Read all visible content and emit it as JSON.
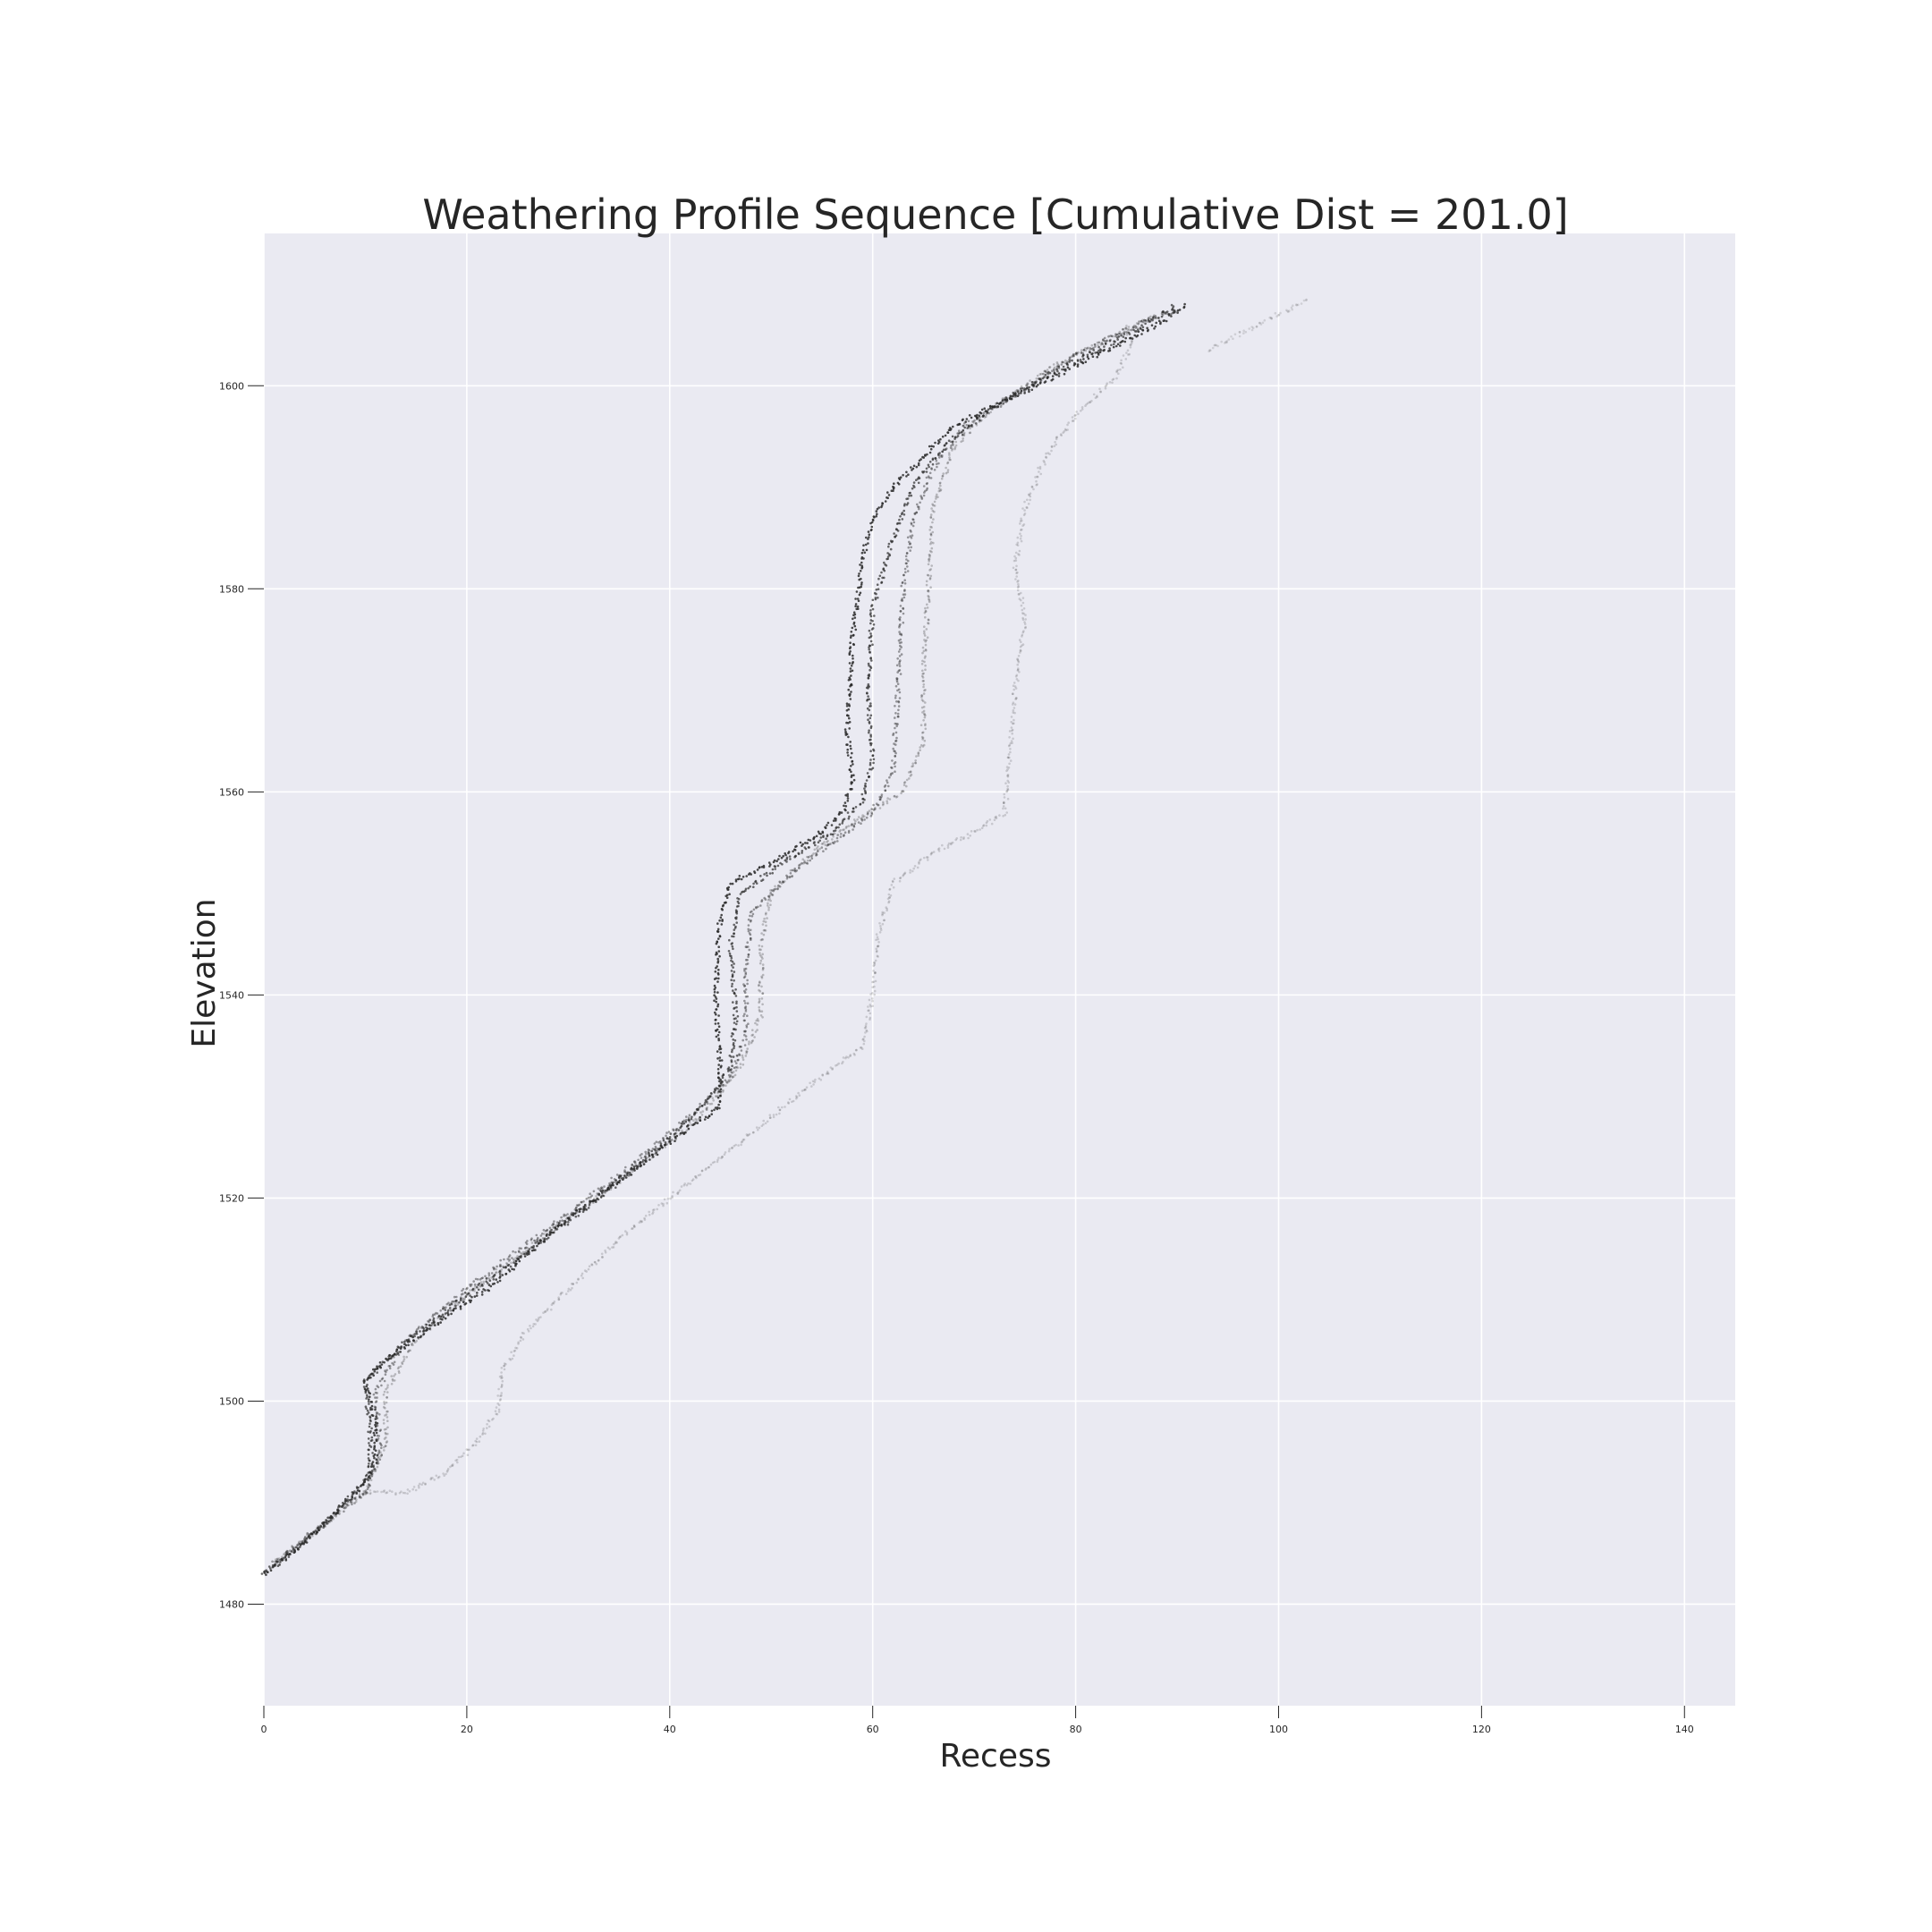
{
  "chart_data": {
    "type": "scatter",
    "title": "Weathering Profile Sequence [Cumulative Dist = 201.0]",
    "xlabel": "Recess",
    "ylabel": "Elevation",
    "xlim": [
      0,
      145
    ],
    "ylim": [
      1470,
      1615
    ],
    "xticks": [
      0,
      20,
      40,
      60,
      80,
      100,
      120,
      140
    ],
    "yticks": [
      1480,
      1500,
      1520,
      1540,
      1560,
      1580,
      1600
    ],
    "grid": true,
    "colors": {
      "background": "#eaeaf2",
      "grid": "#ffffff",
      "points": "#2b2b2b"
    },
    "series": [
      {
        "opacity": 0.85,
        "points": [
          [
            0,
            1483
          ],
          [
            4,
            1486
          ],
          [
            8,
            1490
          ],
          [
            10,
            1492
          ],
          [
            11,
            1494
          ],
          [
            11,
            1498
          ],
          [
            10,
            1502
          ],
          [
            12,
            1504
          ],
          [
            16,
            1507
          ],
          [
            22,
            1511
          ],
          [
            30,
            1518
          ],
          [
            38,
            1524
          ],
          [
            42,
            1527
          ],
          [
            45,
            1529
          ],
          [
            45,
            1533
          ],
          [
            44.5,
            1540
          ],
          [
            45,
            1548
          ],
          [
            46,
            1551
          ],
          [
            50,
            1553
          ],
          [
            55,
            1556
          ],
          [
            57,
            1558
          ],
          [
            58,
            1561
          ],
          [
            57.5,
            1566
          ],
          [
            58,
            1575
          ],
          [
            59,
            1583
          ],
          [
            60,
            1587
          ],
          [
            62,
            1590
          ],
          [
            65,
            1593
          ],
          [
            68,
            1596
          ],
          [
            72,
            1598
          ],
          [
            78,
            1601
          ],
          [
            84,
            1604
          ],
          [
            88,
            1606
          ],
          [
            91,
            1608
          ]
        ]
      },
      {
        "opacity": 0.7,
        "points": [
          [
            0,
            1483
          ],
          [
            5,
            1487
          ],
          [
            9,
            1491
          ],
          [
            10.5,
            1493
          ],
          [
            10.5,
            1497
          ],
          [
            10,
            1502
          ],
          [
            13,
            1505
          ],
          [
            18,
            1509
          ],
          [
            25,
            1514
          ],
          [
            33,
            1520
          ],
          [
            40,
            1526
          ],
          [
            44,
            1530
          ],
          [
            46,
            1533
          ],
          [
            46.5,
            1538
          ],
          [
            46,
            1545
          ],
          [
            47,
            1550
          ],
          [
            51,
            1553
          ],
          [
            56,
            1556
          ],
          [
            59,
            1559
          ],
          [
            60,
            1563
          ],
          [
            59.5,
            1570
          ],
          [
            60,
            1578
          ],
          [
            62,
            1585
          ],
          [
            64,
            1590
          ],
          [
            67,
            1594
          ],
          [
            72,
            1598
          ],
          [
            79,
            1602
          ],
          [
            85,
            1605
          ],
          [
            90,
            1608
          ]
        ]
      },
      {
        "opacity": 0.45,
        "points": [
          [
            1,
            1484
          ],
          [
            6,
            1488
          ],
          [
            10,
            1491
          ],
          [
            11.5,
            1495
          ],
          [
            11,
            1501
          ],
          [
            14,
            1506
          ],
          [
            20,
            1511
          ],
          [
            28,
            1517
          ],
          [
            36,
            1523
          ],
          [
            42,
            1528
          ],
          [
            46,
            1532
          ],
          [
            47.5,
            1536
          ],
          [
            47.5,
            1542
          ],
          [
            48,
            1548
          ],
          [
            52,
            1552
          ],
          [
            56,
            1555
          ],
          [
            60,
            1558
          ],
          [
            62,
            1562
          ],
          [
            62.5,
            1570
          ],
          [
            63,
            1580
          ],
          [
            64,
            1587
          ],
          [
            66,
            1592
          ],
          [
            69,
            1596
          ],
          [
            74,
            1599
          ],
          [
            80,
            1603
          ],
          [
            86,
            1606
          ],
          [
            90,
            1607.5
          ]
        ]
      },
      {
        "opacity": 0.28,
        "points": [
          [
            1,
            1484
          ],
          [
            6,
            1488
          ],
          [
            10,
            1491
          ],
          [
            12,
            1496
          ],
          [
            12,
            1501
          ],
          [
            15,
            1506
          ],
          [
            22,
            1512
          ],
          [
            30,
            1518
          ],
          [
            38,
            1524
          ],
          [
            43,
            1528
          ],
          [
            47,
            1533
          ],
          [
            49,
            1538
          ],
          [
            49,
            1545
          ],
          [
            50,
            1550
          ],
          [
            54,
            1554
          ],
          [
            58,
            1557
          ],
          [
            63,
            1560
          ],
          [
            65,
            1565
          ],
          [
            65,
            1572
          ],
          [
            65.5,
            1580
          ],
          [
            66,
            1588
          ],
          [
            68,
            1594
          ],
          [
            72,
            1598
          ],
          [
            78,
            1602
          ],
          [
            84,
            1605
          ],
          [
            88,
            1607
          ]
        ]
      },
      {
        "opacity": 0.18,
        "points": [
          [
            9,
            1491
          ],
          [
            14,
            1491
          ],
          [
            18,
            1493
          ],
          [
            21,
            1496
          ],
          [
            23,
            1499
          ],
          [
            23.5,
            1503
          ],
          [
            26,
            1507
          ],
          [
            30,
            1511
          ],
          [
            35,
            1516
          ],
          [
            40,
            1520
          ],
          [
            45,
            1524
          ],
          [
            50,
            1528
          ],
          [
            55,
            1532
          ],
          [
            59,
            1535
          ],
          [
            60,
            1540
          ],
          [
            60.5,
            1546
          ],
          [
            62,
            1551
          ],
          [
            66,
            1554
          ],
          [
            70,
            1556
          ],
          [
            73,
            1558
          ],
          [
            73.5,
            1563
          ],
          [
            74,
            1570
          ],
          [
            75,
            1577
          ],
          [
            74,
            1582
          ],
          [
            75,
            1588
          ],
          [
            77,
            1593
          ],
          [
            80,
            1597
          ],
          [
            84,
            1601
          ],
          [
            85.5,
            1604
          ],
          [
            85,
            1606
          ]
        ]
      },
      {
        "opacity": 0.14,
        "points": [
          [
            93,
            1603.5
          ],
          [
            96,
            1605
          ],
          [
            99,
            1606.5
          ],
          [
            103,
            1608.5
          ]
        ]
      }
    ]
  }
}
